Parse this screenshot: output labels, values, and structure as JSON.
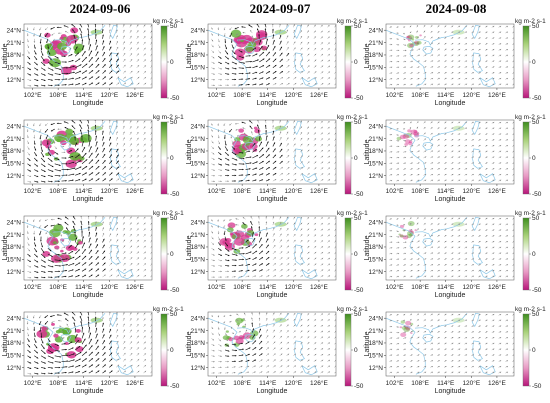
{
  "columns": [
    {
      "date": "2024-09-06"
    },
    {
      "date": "2024-09-07"
    },
    {
      "date": "2024-09-08"
    }
  ],
  "rows": 4,
  "map": {
    "xlabel": "Longitude",
    "ylabel": "Latitude",
    "x_ticks": [
      "102°E",
      "108°E",
      "114°E",
      "120°E",
      "126°E"
    ],
    "y_ticks": [
      "24°N",
      "21°N",
      "18°N",
      "15°N",
      "12°N"
    ],
    "lon_range": [
      100,
      130
    ],
    "lat_range": [
      10,
      25.5
    ]
  },
  "colorbar": {
    "unit": "kg m-2 s-1",
    "ticks": [
      "50",
      "0",
      "-50"
    ],
    "range": [
      -50,
      50
    ],
    "colors": {
      "positive": "#4c9a2a",
      "negative": "#c2187a",
      "zero": "#ffffff"
    }
  },
  "panels": [
    {
      "row": 0,
      "col": 0,
      "vortex": {
        "lon": 109.5,
        "lat": 19.5,
        "radius_deg": 5.5,
        "strength": 1.0
      }
    },
    {
      "row": 0,
      "col": 1,
      "vortex": {
        "lon": 109.0,
        "lat": 20.5,
        "radius_deg": 4.5,
        "strength": 0.9
      }
    },
    {
      "row": 0,
      "col": 2,
      "vortex": {
        "lon": 106.0,
        "lat": 21.5,
        "radius_deg": 2.5,
        "strength": 0.25
      }
    },
    {
      "row": 1,
      "col": 0,
      "vortex": {
        "lon": 109.5,
        "lat": 19.0,
        "radius_deg": 5.5,
        "strength": 1.0
      }
    },
    {
      "row": 1,
      "col": 1,
      "vortex": {
        "lon": 108.5,
        "lat": 20.0,
        "radius_deg": 4.5,
        "strength": 0.85
      }
    },
    {
      "row": 1,
      "col": 2,
      "vortex": {
        "lon": 105.5,
        "lat": 21.0,
        "radius_deg": 2.5,
        "strength": 0.2
      }
    },
    {
      "row": 2,
      "col": 0,
      "vortex": {
        "lon": 108.5,
        "lat": 19.0,
        "radius_deg": 5.0,
        "strength": 0.95
      }
    },
    {
      "row": 2,
      "col": 1,
      "vortex": {
        "lon": 107.5,
        "lat": 20.0,
        "radius_deg": 4.0,
        "strength": 0.8
      }
    },
    {
      "row": 2,
      "col": 2,
      "vortex": {
        "lon": 105.0,
        "lat": 21.5,
        "radius_deg": 2.5,
        "strength": 0.2
      }
    },
    {
      "row": 3,
      "col": 0,
      "vortex": {
        "lon": 109.0,
        "lat": 19.5,
        "radius_deg": 5.5,
        "strength": 1.0
      }
    },
    {
      "row": 3,
      "col": 1,
      "vortex": {
        "lon": 107.0,
        "lat": 20.0,
        "radius_deg": 4.0,
        "strength": 0.6
      }
    },
    {
      "row": 3,
      "col": 2,
      "vortex": {
        "lon": 104.5,
        "lat": 21.5,
        "radius_deg": 2.0,
        "strength": 0.15
      }
    }
  ]
}
